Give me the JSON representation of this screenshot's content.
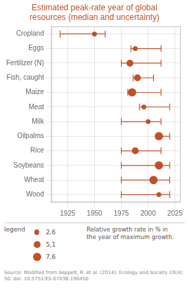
{
  "chart_data": {
    "type": "dot_range",
    "title": "Estimated peak-rate year of global\nresources (median and uncertainty)",
    "title_color": "#c0522a",
    "color": "#c0522a",
    "categories": [
      "Cropland",
      "Eggs",
      "Fertilizer (N)",
      "Fish, caught",
      "Maize",
      "Meat",
      "Milk",
      "Oilpalms",
      "Rice",
      "Soybeans",
      "Wheat",
      "Wood"
    ],
    "values": [
      1950,
      1988,
      1983,
      1990,
      1985,
      1996,
      2000,
      2010,
      1988,
      2010,
      2005,
      2010
    ],
    "low": [
      1918,
      1984,
      1975,
      1986,
      1981,
      1992,
      1975,
      2008,
      1975,
      1975,
      1975,
      1975
    ],
    "high": [
      1960,
      2012,
      2012,
      2005,
      2012,
      2020,
      2012,
      2020,
      2012,
      2020,
      2020,
      2020
    ],
    "sizes": [
      2.6,
      2.6,
      5.1,
      5.1,
      7.6,
      2.6,
      2.6,
      7.6,
      5.1,
      7.6,
      7.6,
      2.6
    ],
    "xlim": [
      1910,
      2030
    ],
    "xticks": [
      1925,
      1950,
      1975,
      2000,
      2025
    ],
    "grid": true,
    "size_legend_title": "legend",
    "size_legend": [
      {
        "value": 2.6,
        "label": "2,6"
      },
      {
        "value": 5.1,
        "label": "5,1"
      },
      {
        "value": 7.6,
        "label": "7,6"
      }
    ],
    "annotations": [
      "Relative growth rate in % in",
      "the year of maximum growth."
    ],
    "source_text": "Source: Modified from Seppelt, R. et al. (2014). Ecology and Society 19(4): 50. doi: 10.5751/ES-07038-190450"
  }
}
